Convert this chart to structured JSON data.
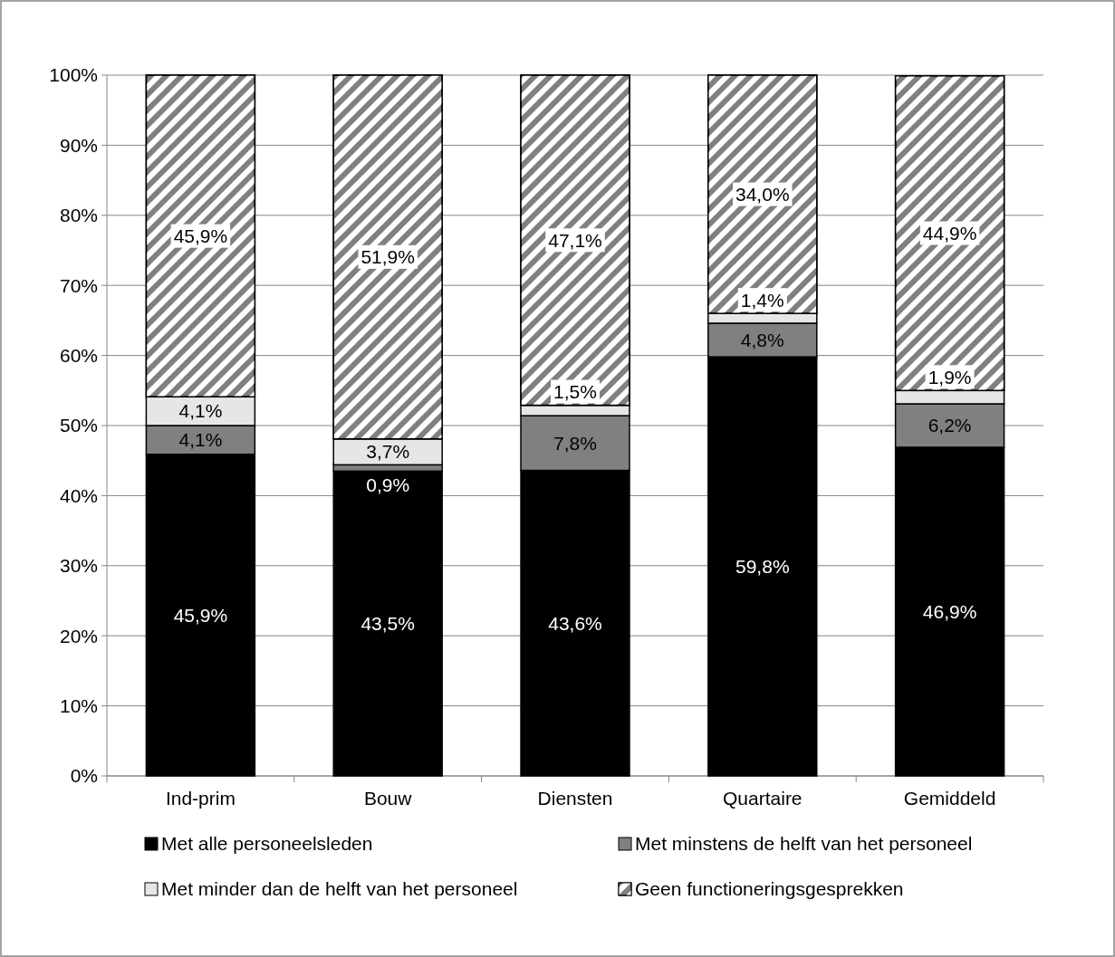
{
  "chart_data": {
    "type": "bar",
    "stacked": true,
    "categories": [
      "Ind-prim",
      "Bouw",
      "Diensten",
      "Quartaire",
      "Gemiddeld"
    ],
    "series": [
      {
        "name": "Met alle personeelsleden",
        "color": "#000000",
        "values": [
          45.9,
          43.5,
          43.6,
          59.8,
          46.9
        ],
        "value_labels": [
          "45,9%",
          "43,5%",
          "43,6%",
          "59,8%",
          "46,9%"
        ]
      },
      {
        "name": "Met minstens de helft van het personeel",
        "color": "#808080",
        "values": [
          4.1,
          0.9,
          7.8,
          4.8,
          6.2
        ],
        "value_labels": [
          "4,1%",
          "0,9%",
          "7,8%",
          "4,8%",
          "6,2%"
        ]
      },
      {
        "name": "Met minder dan de helft van het personeel",
        "color": "#e6e6e6",
        "values": [
          4.1,
          3.7,
          1.5,
          1.4,
          1.9
        ],
        "value_labels": [
          "4,1%",
          "3,7%",
          "1,5%",
          "1,4%",
          "1,9%"
        ]
      },
      {
        "name": "Geen functioneringsgesprekken",
        "color": "#808080",
        "values": [
          45.9,
          51.9,
          47.1,
          34.0,
          44.9
        ],
        "value_labels": [
          "45,9%",
          "51,9%",
          "47,1%",
          "34,0%",
          "44,9%"
        ]
      }
    ],
    "ylim": [
      0,
      100
    ],
    "yticks": [
      {
        "value": 0,
        "label": "0%"
      },
      {
        "value": 10,
        "label": "10%"
      },
      {
        "value": 20,
        "label": "20%"
      },
      {
        "value": 30,
        "label": "30%"
      },
      {
        "value": 40,
        "label": "40%"
      },
      {
        "value": 50,
        "label": "50%"
      },
      {
        "value": 60,
        "label": "60%"
      },
      {
        "value": 70,
        "label": "70%"
      },
      {
        "value": 80,
        "label": "80%"
      },
      {
        "value": 90,
        "label": "90%"
      },
      {
        "value": 100,
        "label": "100%"
      }
    ],
    "grid": "y",
    "legend": "bottom"
  }
}
